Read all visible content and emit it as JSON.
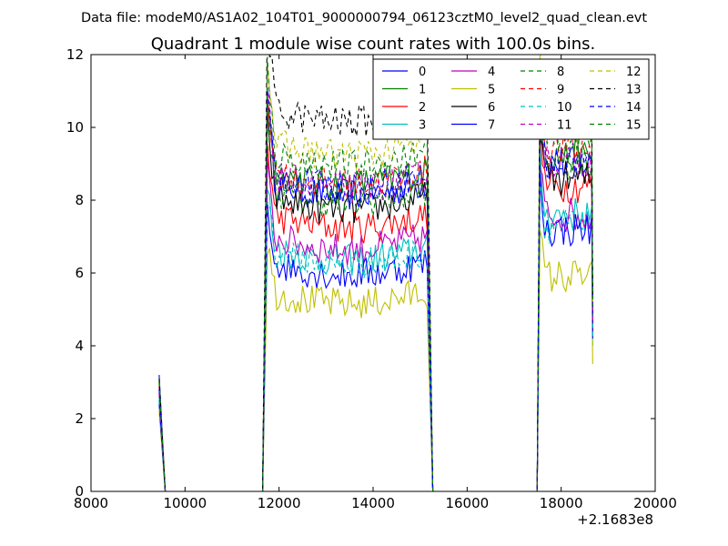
{
  "header": {
    "data_file": "Data file: modeM0/AS1A02_104T01_9000000794_06123cztM0_level2_quad_clean.evt"
  },
  "chart_data": {
    "type": "line",
    "title": "Quadrant 1 module wise count rates with 100.0s bins.",
    "xlabel": "",
    "ylabel": "",
    "x_offset_label": "+2.1683e8",
    "xlim": [
      8000,
      20000
    ],
    "ylim": [
      0,
      12
    ],
    "x_ticks": [
      8000,
      10000,
      12000,
      14000,
      16000,
      18000,
      20000
    ],
    "y_ticks": [
      0,
      2,
      4,
      6,
      8,
      10,
      12
    ],
    "x_tick_labels": [
      "8000",
      "10000",
      "12000",
      "14000",
      "16000",
      "18000",
      "20000"
    ],
    "y_tick_labels": [
      "0",
      "2",
      "4",
      "6",
      "8",
      "10",
      "12"
    ],
    "grid": false,
    "legend_position": "top-right",
    "legend_columns": 4,
    "segments": [
      {
        "x_start": 9450,
        "x_end": 9550
      },
      {
        "x_start": 11750,
        "x_end": 15150
      },
      {
        "x_start": 17550,
        "x_end": 18650
      }
    ],
    "series": [
      {
        "name": "0",
        "color": "#0000ff",
        "dash": false,
        "start": 3.2,
        "segment_levels": [
          8.5,
          9.0
        ],
        "end": 4.5
      },
      {
        "name": "1",
        "color": "#008000",
        "dash": false,
        "start": 3.0,
        "segment_levels": [
          8.8,
          9.2
        ],
        "end": 4.8
      },
      {
        "name": "2",
        "color": "#ff0000",
        "dash": false,
        "start": 2.8,
        "segment_levels": [
          7.6,
          8.4
        ],
        "end": 4.6
      },
      {
        "name": "3",
        "color": "#00bfbf",
        "dash": false,
        "start": 2.6,
        "segment_levels": [
          6.7,
          7.6
        ],
        "end": 4.0
      },
      {
        "name": "4",
        "color": "#bf00bf",
        "dash": false,
        "start": 2.5,
        "segment_levels": [
          7.0,
          7.6
        ],
        "end": 4.4
      },
      {
        "name": "5",
        "color": "#bfbf00",
        "dash": false,
        "start": 2.2,
        "segment_levels": [
          5.5,
          5.9
        ],
        "end": 3.5
      },
      {
        "name": "6",
        "color": "#000000",
        "dash": false,
        "start": 2.9,
        "segment_levels": [
          8.1,
          8.6
        ],
        "end": 5.0
      },
      {
        "name": "7",
        "color": "#0000ff",
        "dash": false,
        "start": 2.4,
        "segment_levels": [
          6.3,
          7.2
        ],
        "end": 4.2
      },
      {
        "name": "8",
        "color": "#008000",
        "dash": true,
        "start": 2.7,
        "segment_levels": [
          8.3,
          9.0
        ],
        "end": 4.8
      },
      {
        "name": "9",
        "color": "#ff0000",
        "dash": true,
        "start": 2.9,
        "segment_levels": [
          8.8,
          9.4
        ],
        "end": 5.0
      },
      {
        "name": "10",
        "color": "#00bfbf",
        "dash": true,
        "start": 2.5,
        "segment_levels": [
          6.6,
          7.3
        ],
        "end": 4.2
      },
      {
        "name": "11",
        "color": "#bf00bf",
        "dash": true,
        "start": 2.7,
        "segment_levels": [
          8.7,
          9.1
        ],
        "end": 4.7
      },
      {
        "name": "12",
        "color": "#bfbf00",
        "dash": true,
        "start": 3.0,
        "segment_levels": [
          9.6,
          10.0
        ],
        "end": 5.2
      },
      {
        "name": "13",
        "color": "#000000",
        "dash": true,
        "start": 3.1,
        "segment_levels": [
          10.5,
          10.5
        ],
        "end": 5.4
      },
      {
        "name": "14",
        "color": "#0000ff",
        "dash": true,
        "start": 2.8,
        "segment_levels": [
          8.7,
          9.0
        ],
        "end": 4.9
      },
      {
        "name": "15",
        "color": "#008000",
        "dash": true,
        "start": 3.0,
        "segment_levels": [
          9.3,
          9.6
        ],
        "end": 5.1
      }
    ]
  }
}
